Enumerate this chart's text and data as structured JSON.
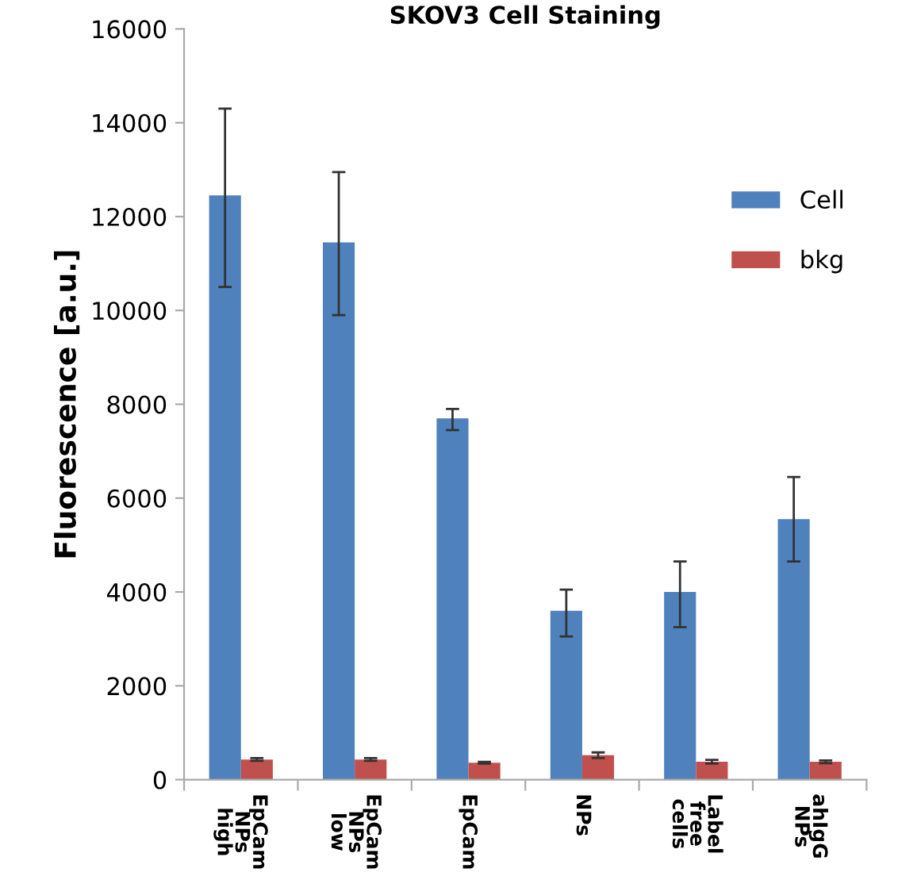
{
  "chart_data": {
    "type": "bar",
    "title": "SKOV3 Cell Staining",
    "ylabel": "Fluorescence [a.u.]",
    "categories": [
      "EpCam\nNPs\nhigh",
      "EpCam\nNPs\nlow",
      "EpCam",
      "NPs",
      "Label\nfree\ncells",
      "ahIgG\nNPs"
    ],
    "series": [
      {
        "name": "Cell",
        "color": "#4f81bd",
        "values": [
          12450,
          11450,
          7700,
          3600,
          4000,
          5550
        ],
        "errors": [
          [
            10500,
            14300
          ],
          [
            9900,
            12950
          ],
          [
            7450,
            7900
          ],
          [
            3050,
            4050
          ],
          [
            3250,
            4650
          ],
          [
            4650,
            6450
          ]
        ]
      },
      {
        "name": "bkg",
        "color": "#c0504d",
        "values": [
          430,
          430,
          360,
          520,
          380,
          380
        ],
        "errors": [
          30,
          30,
          20,
          60,
          40,
          30
        ]
      }
    ],
    "ylim": [
      0,
      16000
    ],
    "yticks": [
      0,
      2000,
      4000,
      6000,
      8000,
      10000,
      12000,
      14000,
      16000
    ],
    "grid": false,
    "legend": "right"
  }
}
